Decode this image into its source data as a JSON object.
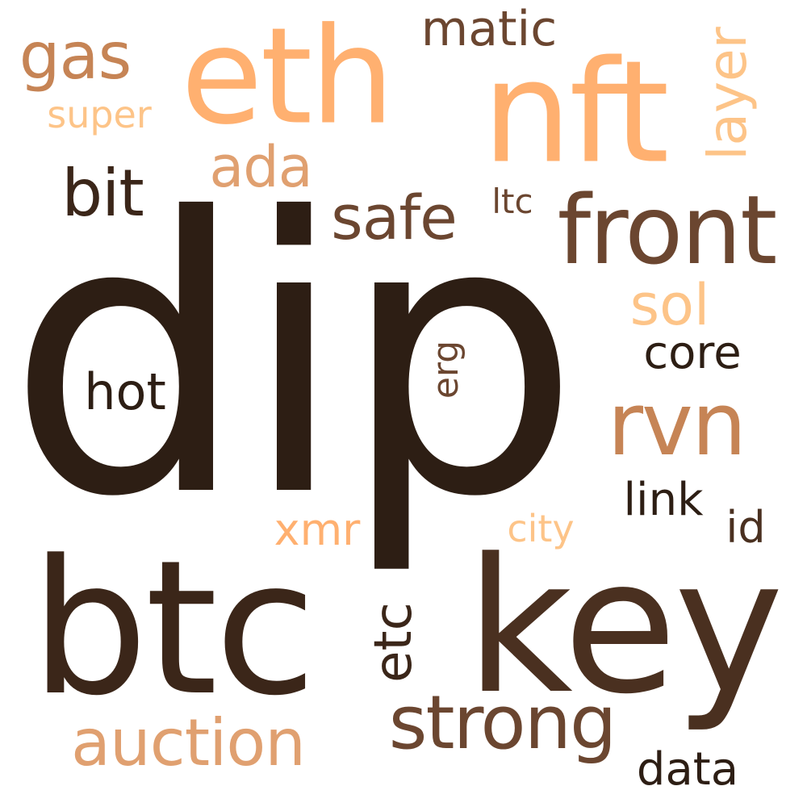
{
  "palette": {
    "background": "#ffffff",
    "darkest": "#2d1e14",
    "dark": "#3b2619",
    "brown": "#4a3020",
    "mid_brown": "#6b4630",
    "tan": "#c68455",
    "orange": "#e0a070",
    "light_orange": "#ffb070",
    "pale": "#fdc488"
  },
  "words": [
    {
      "id": "dip",
      "text": "dip",
      "color": "#2d1e14",
      "orientation": "horizontal"
    },
    {
      "id": "key",
      "text": "key",
      "color": "#4a3020",
      "orientation": "horizontal"
    },
    {
      "id": "btc",
      "text": "btc",
      "color": "#3b2619",
      "orientation": "horizontal"
    },
    {
      "id": "nft",
      "text": "nft",
      "color": "#ffb070",
      "orientation": "horizontal"
    },
    {
      "id": "eth",
      "text": "eth",
      "color": "#ffb070",
      "orientation": "horizontal"
    },
    {
      "id": "front",
      "text": "front",
      "color": "#6b4630",
      "orientation": "horizontal"
    },
    {
      "id": "rvn",
      "text": "rvn",
      "color": "#c68455",
      "orientation": "horizontal"
    },
    {
      "id": "strong",
      "text": "strong",
      "color": "#6b4630",
      "orientation": "horizontal"
    },
    {
      "id": "auction",
      "text": "auction",
      "color": "#e0a070",
      "orientation": "horizontal"
    },
    {
      "id": "gas",
      "text": "gas",
      "color": "#c68455",
      "orientation": "horizontal"
    },
    {
      "id": "bit",
      "text": "bit",
      "color": "#3b2619",
      "orientation": "horizontal"
    },
    {
      "id": "safe",
      "text": "safe",
      "color": "#6b4630",
      "orientation": "horizontal"
    },
    {
      "id": "ada",
      "text": "ada",
      "color": "#e0a070",
      "orientation": "horizontal"
    },
    {
      "id": "layer",
      "text": "layer",
      "color": "#fdc488",
      "orientation": "vertical"
    },
    {
      "id": "matic",
      "text": "matic",
      "color": "#6b4630",
      "orientation": "horizontal"
    },
    {
      "id": "sol",
      "text": "sol",
      "color": "#fdc488",
      "orientation": "horizontal"
    },
    {
      "id": "etc",
      "text": "etc",
      "color": "#3b2619",
      "orientation": "vertical"
    },
    {
      "id": "hot",
      "text": "hot",
      "color": "#2d1e14",
      "orientation": "horizontal"
    },
    {
      "id": "core",
      "text": "core",
      "color": "#2d1e14",
      "orientation": "horizontal"
    },
    {
      "id": "link",
      "text": "link",
      "color": "#2d1e14",
      "orientation": "horizontal"
    },
    {
      "id": "xmr",
      "text": "xmr",
      "color": "#ffb070",
      "orientation": "horizontal"
    },
    {
      "id": "data",
      "text": "data",
      "color": "#2d1e14",
      "orientation": "horizontal"
    },
    {
      "id": "id",
      "text": "id",
      "color": "#4a3020",
      "orientation": "horizontal"
    },
    {
      "id": "city",
      "text": "city",
      "color": "#fdc488",
      "orientation": "horizontal"
    },
    {
      "id": "super",
      "text": "super",
      "color": "#fdc488",
      "orientation": "horizontal"
    },
    {
      "id": "erg",
      "text": "erg",
      "color": "#6b4630",
      "orientation": "vertical"
    },
    {
      "id": "ltc",
      "text": "ltc",
      "color": "#6b4630",
      "orientation": "horizontal"
    }
  ]
}
